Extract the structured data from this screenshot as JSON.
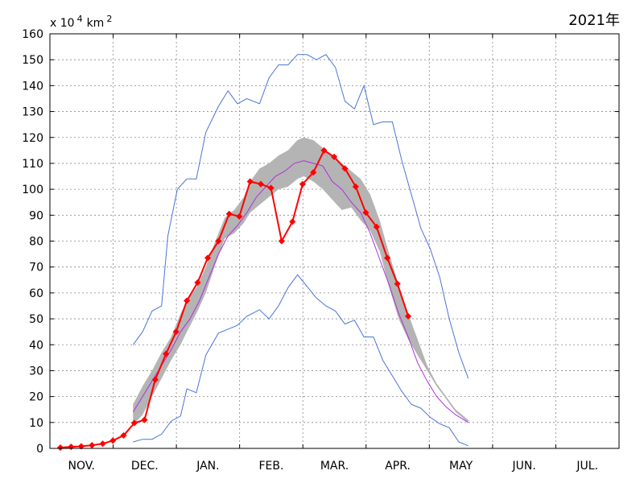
{
  "chart_data": {
    "type": "line",
    "year_label": "2021年",
    "unit_label": {
      "prefix": "x 10",
      "exp1": "4",
      "mid": "km",
      "exp2": "2"
    },
    "ylim": [
      0,
      160
    ],
    "y_ticks": [
      "0",
      "10",
      "20",
      "30",
      "40",
      "50",
      "60",
      "70",
      "80",
      "90",
      "100",
      "110",
      "120",
      "130",
      "140",
      "150",
      "160"
    ],
    "months": [
      "NOV.",
      "DEC.",
      "JAN.",
      "FEB.",
      "MAR.",
      "APR.",
      "MAY",
      "JUN.",
      "JUL."
    ],
    "grid": true,
    "colors": {
      "current": "#ff0000",
      "mean": "#b030e0",
      "extreme": "#4a74d8",
      "band": "#b4b4b4"
    },
    "series": [
      {
        "role": "max",
        "x": [
          1.15,
          1.3,
          1.45,
          1.6,
          1.7,
          1.85,
          2.0,
          2.15,
          2.3,
          2.5,
          2.65,
          2.8,
          2.95,
          3.15,
          3.3,
          3.45,
          3.6,
          3.75,
          3.9,
          4.05,
          4.2,
          4.35,
          4.5,
          4.65,
          4.8,
          4.95,
          5.1,
          5.25,
          5.4,
          5.55,
          5.7,
          5.85,
          6.0,
          6.15,
          6.3,
          6.45
        ],
        "values": [
          40,
          45,
          53,
          55,
          82,
          100,
          104,
          104,
          122,
          132,
          138,
          133,
          135,
          133,
          143,
          148,
          148,
          152,
          152,
          150,
          152,
          147,
          134,
          131,
          140,
          125,
          126,
          126,
          111,
          98,
          85,
          77,
          66,
          50,
          37,
          27
        ]
      },
      {
        "role": "min",
        "x": [
          1.15,
          1.3,
          1.45,
          1.6,
          1.75,
          1.9,
          2.0,
          2.15,
          2.3,
          2.5,
          2.65,
          2.8,
          2.95,
          3.15,
          3.3,
          3.45,
          3.6,
          3.75,
          3.9,
          4.05,
          4.2,
          4.35,
          4.5,
          4.65,
          4.8,
          4.95,
          5.1,
          5.25,
          5.4,
          5.55,
          5.7,
          5.85,
          6.0,
          6.15,
          6.3,
          6.45
        ],
        "values": [
          2.5,
          3.5,
          3.5,
          5.5,
          10.5,
          12.5,
          23,
          21.5,
          36,
          44.5,
          46,
          47.5,
          51,
          53.5,
          50,
          55,
          62,
          67,
          62.5,
          58,
          55,
          53,
          48,
          49.5,
          43,
          43,
          34,
          28,
          22,
          17,
          15.5,
          12,
          9.5,
          8,
          2.5,
          1
        ]
      },
      {
        "role": "mean",
        "x": [
          1.15,
          1.3,
          1.45,
          1.6,
          1.75,
          1.9,
          2.05,
          2.2,
          2.35,
          2.5,
          2.65,
          2.8,
          2.95,
          3.1,
          3.25,
          3.4,
          3.55,
          3.7,
          3.85,
          4.0,
          4.15,
          4.3,
          4.45,
          4.6,
          4.75,
          4.9,
          5.05,
          5.2,
          5.35,
          5.5,
          5.65,
          5.8,
          5.95,
          6.1,
          6.25,
          6.45
        ],
        "values": [
          14,
          20,
          26,
          32,
          38,
          45,
          50,
          57,
          66,
          75,
          82,
          86,
          91,
          97,
          101,
          105,
          107,
          110,
          111,
          110,
          109,
          103,
          100,
          95,
          91,
          83,
          73,
          63,
          52,
          43,
          33,
          26,
          20,
          16,
          13,
          10
        ]
      },
      {
        "role": "band_upper",
        "x": [
          1.15,
          1.3,
          1.45,
          1.6,
          1.75,
          1.9,
          2.0,
          2.15,
          2.3,
          2.45,
          2.6,
          2.75,
          2.9,
          3.0,
          3.15,
          3.3,
          3.45,
          3.6,
          3.75,
          3.85,
          4.0,
          4.15,
          4.3,
          4.45,
          4.6,
          4.75,
          4.9,
          5.05,
          5.2,
          5.35,
          5.5,
          5.65,
          5.8,
          5.95,
          6.1,
          6.25,
          6.45
        ],
        "values": [
          17,
          24,
          30,
          37,
          43,
          52,
          57,
          62,
          70,
          80,
          89,
          92,
          97,
          103,
          108,
          110,
          113,
          115,
          119,
          120,
          119,
          116,
          113,
          110,
          107,
          104,
          98,
          88,
          75,
          63,
          52,
          42,
          32,
          25,
          20,
          15,
          11
        ]
      },
      {
        "role": "band_lower",
        "x": [
          1.15,
          1.3,
          1.45,
          1.6,
          1.75,
          1.9,
          2.0,
          2.15,
          2.3,
          2.45,
          2.6,
          2.75,
          2.9,
          3.0,
          3.15,
          3.3,
          3.45,
          3.6,
          3.75,
          3.85,
          4.0,
          4.15,
          4.3,
          4.45,
          4.6,
          4.75,
          4.9,
          5.05,
          5.2,
          5.35,
          5.5,
          5.65,
          5.8,
          5.95,
          6.1,
          6.25,
          6.45
        ],
        "values": [
          9,
          13,
          20,
          27,
          34,
          40,
          45,
          52,
          60,
          71,
          81,
          83,
          87,
          91,
          94,
          97,
          100,
          101,
          104,
          105,
          103,
          100,
          96,
          92,
          93,
          88,
          84,
          76,
          62,
          50,
          42,
          36,
          30,
          24,
          19,
          14,
          10
        ]
      },
      {
        "role": "current",
        "x": [
          0.0,
          0.17,
          0.33,
          0.5,
          0.67,
          0.83,
          1.0,
          1.17,
          1.33,
          1.5,
          1.67,
          1.83,
          2.0,
          2.17,
          2.33,
          2.5,
          2.67,
          2.83,
          3.0,
          3.17,
          3.33,
          3.5,
          3.67,
          3.83,
          4.0,
          4.17,
          4.33,
          4.5,
          4.67,
          4.83,
          5.0,
          5.17,
          5.33,
          5.5
        ],
        "values": [
          0.3,
          0.6,
          0.8,
          1.2,
          1.8,
          3.0,
          5.0,
          9.8,
          11.0,
          26.5,
          36.5,
          45.0,
          57.0,
          64.0,
          73.5,
          80.0,
          90.5,
          89.5,
          103.0,
          102.0,
          100.5,
          80.0,
          87.5,
          102.0,
          106.5,
          115.0,
          112.5,
          108.0,
          101.0,
          91.0,
          85.5,
          73.5,
          63.5,
          51.0
        ]
      }
    ]
  }
}
